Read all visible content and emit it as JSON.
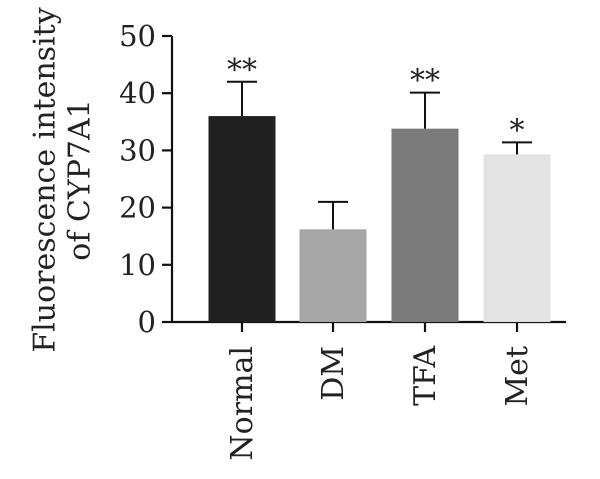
{
  "chart_data": {
    "type": "bar",
    "ylabel": [
      "Fluorescence intensity",
      "of CYP7A1"
    ],
    "categories": [
      "Normal",
      "DM",
      "TFA",
      "Met"
    ],
    "values": [
      36,
      16.2,
      33.8,
      29.3
    ],
    "errors": [
      6,
      4.8,
      6.3,
      2.1
    ],
    "significance": [
      "**",
      "",
      "**",
      "*"
    ],
    "colors": [
      "#202020",
      "#a6a6a6",
      "#7a7a7a",
      "#e3e3e3"
    ],
    "ylim": [
      0,
      50
    ],
    "yticks": [
      0,
      10,
      20,
      30,
      40,
      50
    ],
    "grid": false,
    "legend": null
  }
}
